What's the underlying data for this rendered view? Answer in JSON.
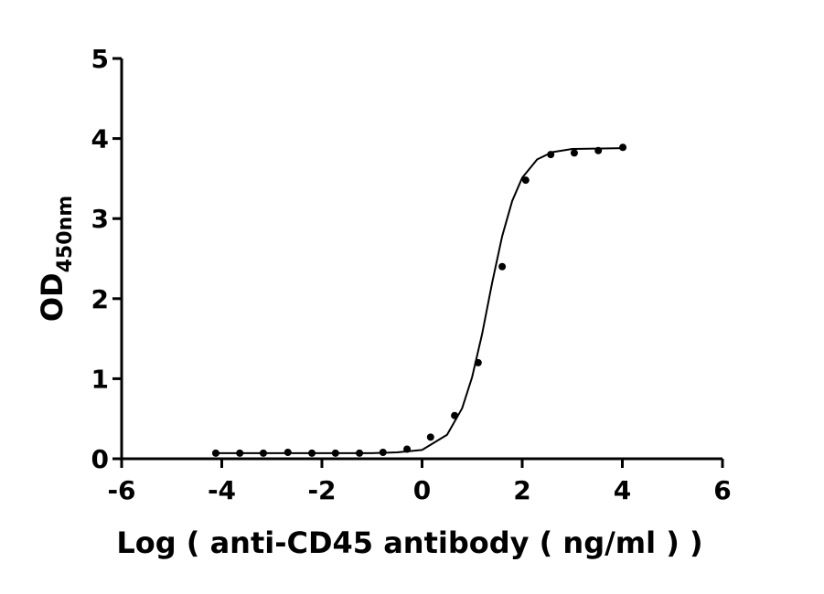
{
  "chart_data": {
    "type": "scatter",
    "xlabel": "Log ( anti-CD45 antibody ( ng/ml )    )",
    "ylabel": "OD",
    "ylabel_sub": "450nm",
    "xlim": [
      -6,
      6
    ],
    "xticks": [
      -6,
      -4,
      -2,
      0,
      2,
      4,
      6
    ],
    "ylim": [
      0,
      5
    ],
    "yticks": [
      0,
      1,
      2,
      3,
      4,
      5
    ],
    "series": [
      {
        "type": "scatter",
        "color": "#000000",
        "x": [
          -4.12,
          -3.64,
          -3.17,
          -2.68,
          -2.2,
          -1.73,
          -1.25,
          -0.78,
          -0.3,
          0.17,
          0.65,
          1.12,
          1.6,
          2.07,
          2.57,
          3.04,
          3.52,
          4.01
        ],
        "values": [
          0.07,
          0.07,
          0.07,
          0.08,
          0.07,
          0.07,
          0.07,
          0.08,
          0.12,
          0.27,
          0.54,
          1.2,
          2.4,
          3.48,
          3.8,
          3.82,
          3.85,
          3.89
        ]
      },
      {
        "type": "line",
        "color": "#000000",
        "x": [
          -4.1,
          -2,
          -1,
          -0.5,
          0,
          0.5,
          0.8,
          1.0,
          1.2,
          1.4,
          1.6,
          1.8,
          2.0,
          2.3,
          2.6,
          3.0,
          4.0
        ],
        "values": [
          0.07,
          0.07,
          0.07,
          0.08,
          0.11,
          0.3,
          0.63,
          1.02,
          1.56,
          2.2,
          2.78,
          3.22,
          3.51,
          3.74,
          3.83,
          3.87,
          3.88
        ]
      }
    ]
  }
}
